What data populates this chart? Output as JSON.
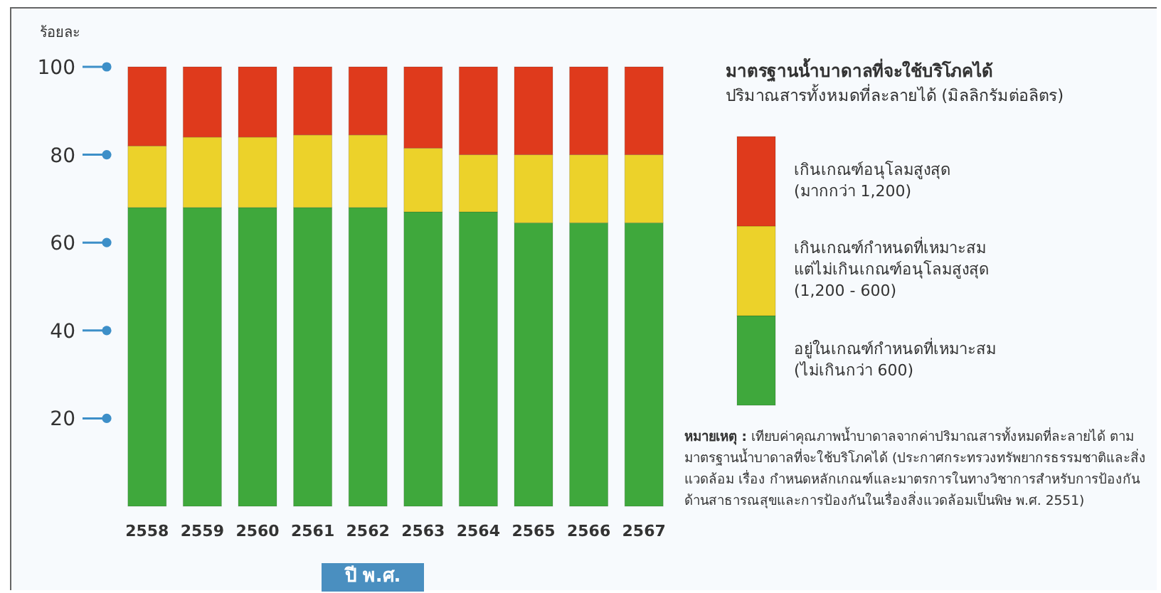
{
  "chart_data": {
    "type": "bar",
    "stacked": true,
    "title": "มาตรฐานน้ำบาดาลที่จะใช้บริโภคได้",
    "subtitle": "ปริมาณสารทั้งหมดที่ละลายได้ (มิลลิกรัมต่อลิตร)",
    "ylabel": "ร้อยละ",
    "xlabel": "ปี พ.ศ.",
    "categories": [
      "2558",
      "2559",
      "2560",
      "2561",
      "2562",
      "2563",
      "2564",
      "2565",
      "2566",
      "2567"
    ],
    "series": [
      {
        "name": "อยู่ในเกณฑ์กำหนดที่เหมาะสม\n(ไม่เกินกว่า 600)",
        "color": "#3fa83c",
        "values": [
          68,
          68,
          68,
          68,
          68,
          67,
          67,
          64.5,
          64.5,
          64.5
        ]
      },
      {
        "name": "เกินเกณฑ์กำหนดที่เหมาะสม\nแต่ไม่เกินเกณฑ์อนุโลมสูงสุด\n(1,200 - 600)",
        "color": "#ecd22a",
        "values": [
          14,
          16,
          16,
          16.5,
          16.5,
          14.5,
          13,
          15.5,
          15.5,
          15.5
        ]
      },
      {
        "name": "เกินเกณฑ์อนุโลมสูงสุด\n(มากกว่า 1,200)",
        "color": "#df3a1c",
        "values": [
          18,
          16,
          16,
          15.5,
          15.5,
          18.5,
          20,
          20,
          20,
          20
        ]
      }
    ],
    "ylim": [
      0,
      100
    ],
    "yticks": [
      20,
      40,
      60,
      80,
      100
    ],
    "grid": false,
    "legend": "right",
    "annotations": [
      "**หมายเหตุ :** เทียบค่าคุณภาพน้ำบาดาลจากค่าปริมาณสารทั้งหมดที่ละลายได้ ตามมาตรฐานน้ำบาดาลที่จะใช้บริโภคได้ (ประกาศกระทรวงทรัพยากรธรรมชาติและสิ่งแวดล้อม เรื่อง กำหนดหลักเกณฑ์และมาตรการในทางวิชาการสำหรับการป้องกันด้านสาธารณสุขและการป้องกันในเรื่องสิ่งแวดล้อมเป็นพิษ พ.ศ. 2551)"
    ]
  }
}
